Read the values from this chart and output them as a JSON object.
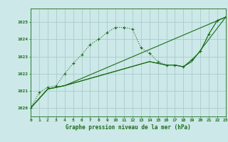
{
  "background_color": "#cce8e8",
  "plot_bg_color": "#cce8e8",
  "grid_color": "#aacccc",
  "line_color": "#1a6e1a",
  "xlabel": "Graphe pression niveau de la mer (hPa)",
  "xlim": [
    0,
    23
  ],
  "ylim": [
    1019.5,
    1025.8
  ],
  "yticks": [
    1020,
    1021,
    1022,
    1023,
    1024,
    1025
  ],
  "xticks": [
    0,
    1,
    2,
    3,
    4,
    5,
    6,
    7,
    8,
    9,
    10,
    11,
    12,
    13,
    14,
    15,
    16,
    17,
    18,
    19,
    20,
    21,
    22,
    23
  ],
  "series": [
    {
      "x": [
        0,
        1,
        2,
        3,
        4,
        5,
        6,
        7,
        8,
        9,
        10,
        11,
        12,
        13,
        14,
        15,
        16,
        17,
        18,
        19,
        20,
        21,
        22,
        23
      ],
      "y": [
        1020.0,
        1020.9,
        1021.2,
        1021.3,
        1022.0,
        1022.6,
        1023.1,
        1023.7,
        1024.0,
        1024.4,
        1024.7,
        1024.7,
        1024.6,
        1023.5,
        1023.2,
        1022.7,
        1022.5,
        1022.5,
        1022.4,
        1022.8,
        1023.3,
        1024.3,
        1025.1,
        1025.3
      ]
    },
    {
      "x": [
        0,
        2,
        3,
        4,
        23
      ],
      "y": [
        1020.0,
        1021.1,
        1021.2,
        1021.3,
        1025.3
      ]
    },
    {
      "x": [
        0,
        2,
        3,
        4,
        14,
        15,
        16,
        17,
        18,
        19,
        20,
        21,
        22,
        23
      ],
      "y": [
        1020.0,
        1021.1,
        1021.2,
        1021.3,
        1022.7,
        1022.6,
        1022.5,
        1022.5,
        1022.4,
        1022.8,
        1023.3,
        1024.3,
        1025.1,
        1025.3
      ]
    },
    {
      "x": [
        0,
        2,
        3,
        4,
        14,
        15,
        16,
        17,
        18,
        19,
        23
      ],
      "y": [
        1020.0,
        1021.1,
        1021.2,
        1021.3,
        1022.7,
        1022.6,
        1022.5,
        1022.5,
        1022.4,
        1022.7,
        1025.3
      ]
    }
  ]
}
